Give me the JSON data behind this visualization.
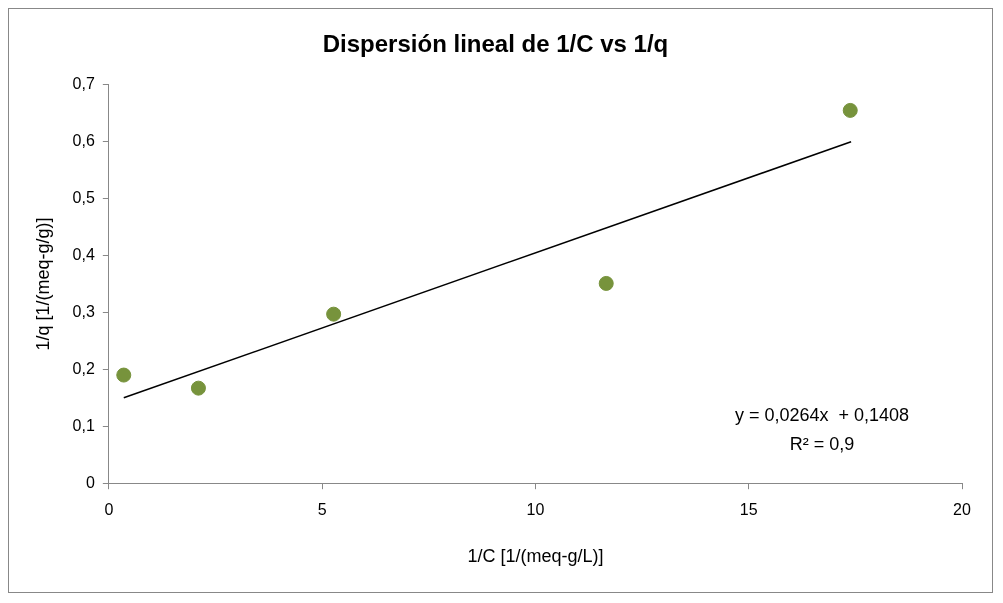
{
  "chart_data": {
    "type": "scatter",
    "title": "Dispersión lineal de 1/C vs 1/q",
    "xlabel": "1/C [1/(meq-g/L)]",
    "ylabel": "1/q [1/(meq-g/g)]",
    "xlim": [
      0,
      20
    ],
    "xticks": [
      0,
      5,
      10,
      15,
      20
    ],
    "ylim": [
      0,
      0.7
    ],
    "yticks": [
      0,
      {
        "value": 0.1,
        "label": "0,1"
      },
      {
        "value": 0.2,
        "label": "0,2"
      },
      {
        "value": 0.3,
        "label": "0,3"
      },
      {
        "value": 0.4,
        "label": "0,4"
      },
      {
        "value": 0.5,
        "label": "0,5"
      },
      {
        "value": 0.6,
        "label": "0,6"
      },
      {
        "value": 0.7,
        "label": "0,7"
      }
    ],
    "grid": false,
    "legend": false,
    "marker": "circle",
    "series": [
      {
        "type": "scatter",
        "color": "#77933c",
        "x": [
          0.35,
          2.1,
          5.27,
          11.66,
          17.38
        ],
        "values": [
          0.19,
          0.167,
          0.297,
          0.351,
          0.655
        ]
      },
      {
        "type": "line",
        "color": "#000000",
        "marker": "none",
        "x": [
          0.35,
          17.4
        ],
        "values": [
          0.15,
          0.6
        ]
      }
    ],
    "annotations": [
      "y = 0,0264x  + 0,1408",
      "R² = 0,9"
    ]
  }
}
